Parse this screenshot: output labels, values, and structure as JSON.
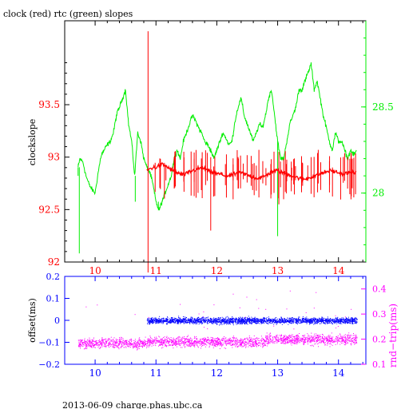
{
  "title": "clock (red) rtc (green) slopes",
  "footer": "2013-06-09  charge.phas.ubc.ca",
  "colors": {
    "red": "#ff0000",
    "green": "#00ee00",
    "blue": "#0000ff",
    "magenta": "#ff00ff",
    "black": "#000000"
  },
  "chart_data": [
    {
      "type": "line",
      "title": "clock (red) rtc (green) slopes",
      "xlabel": "",
      "ylabel": "clockslope",
      "xlim": [
        9.5,
        14.45
      ],
      "ylim": [
        92,
        94.3
      ],
      "y2lim": [
        27.6,
        29.0
      ],
      "x_ticks": [
        10,
        11,
        12,
        13,
        14
      ],
      "y_ticks": [
        92,
        92.5,
        93,
        93.5
      ],
      "y2_ticks": [
        28,
        28.5
      ],
      "x_tick_labels": [
        "10",
        "11",
        "12",
        "13",
        "14"
      ],
      "y_tick_labels": [
        "92",
        "92.5",
        "93",
        "93.5"
      ],
      "y2_tick_labels": [
        "28",
        "28.5"
      ],
      "grid": false,
      "series": [
        {
          "axis": "right",
          "color": "green",
          "x": [
            9.72,
            9.75,
            9.8,
            9.85,
            9.9,
            9.95,
            10.0,
            10.05,
            10.1,
            10.15,
            10.2,
            10.25,
            10.3,
            10.35,
            10.4,
            10.45,
            10.5,
            10.55,
            10.6,
            10.65,
            10.7,
            10.75,
            10.8,
            10.85,
            10.9,
            10.95,
            11.0,
            11.05,
            11.1,
            11.15,
            11.2,
            11.25,
            11.3,
            11.35,
            11.4,
            11.45,
            11.5,
            11.55,
            11.6,
            11.65,
            11.7,
            11.75,
            11.8,
            11.85,
            11.9,
            11.95,
            12.0,
            12.05,
            12.1,
            12.15,
            12.2,
            12.25,
            12.3,
            12.35,
            12.4,
            12.45,
            12.5,
            12.55,
            12.6,
            12.65,
            12.7,
            12.75,
            12.8,
            12.85,
            12.9,
            12.95,
            13.0,
            13.05,
            13.1,
            13.15,
            13.2,
            13.25,
            13.3,
            13.35,
            13.4,
            13.45,
            13.5,
            13.55,
            13.6,
            13.65,
            13.7,
            13.75,
            13.8,
            13.85,
            13.9,
            13.95,
            14.0,
            14.05,
            14.1,
            14.15,
            14.2,
            14.25,
            14.3
          ],
          "values": [
            28.15,
            28.2,
            28.18,
            28.1,
            28.05,
            28.02,
            28.0,
            28.12,
            28.22,
            28.25,
            28.28,
            28.3,
            28.35,
            28.45,
            28.5,
            28.55,
            28.6,
            28.4,
            28.3,
            28.1,
            28.35,
            28.3,
            28.2,
            28.15,
            28.12,
            28.05,
            27.95,
            27.9,
            27.95,
            28.0,
            28.05,
            28.1,
            28.2,
            28.25,
            28.2,
            28.3,
            28.35,
            28.4,
            28.45,
            28.42,
            28.38,
            28.35,
            28.3,
            28.28,
            28.25,
            28.2,
            28.25,
            28.3,
            28.35,
            28.32,
            28.28,
            28.3,
            28.42,
            28.5,
            28.55,
            28.45,
            28.4,
            28.35,
            28.3,
            28.35,
            28.4,
            28.38,
            28.45,
            28.55,
            28.6,
            28.45,
            28.3,
            28.2,
            28.2,
            28.3,
            28.4,
            28.45,
            28.5,
            28.6,
            28.6,
            28.65,
            28.7,
            28.75,
            28.6,
            28.65,
            28.55,
            28.45,
            28.38,
            28.3,
            28.25,
            28.35,
            28.3,
            28.3,
            28.25,
            28.2,
            28.25,
            28.22,
            28.25
          ]
        },
        {
          "axis": "left",
          "color": "red",
          "x": [
            10.85,
            10.9,
            10.95,
            11.0,
            11.05,
            11.1,
            11.15,
            11.2,
            11.25,
            11.3,
            11.35,
            11.4,
            11.45,
            11.5,
            11.55,
            11.6,
            11.65,
            11.7,
            11.75,
            11.8,
            11.85,
            11.9,
            11.95,
            12.0,
            12.05,
            12.1,
            12.15,
            12.2,
            12.25,
            12.3,
            12.35,
            12.4,
            12.45,
            12.5,
            12.55,
            12.6,
            12.65,
            12.7,
            12.75,
            12.8,
            12.85,
            12.9,
            12.95,
            13.0,
            13.05,
            13.1,
            13.15,
            13.2,
            13.25,
            13.3,
            13.35,
            13.4,
            13.45,
            13.5,
            13.55,
            13.6,
            13.65,
            13.7,
            13.75,
            13.8,
            13.85,
            13.9,
            13.95,
            14.0,
            14.05,
            14.1,
            14.15,
            14.2,
            14.25,
            14.3
          ],
          "values": [
            92.87,
            92.89,
            92.9,
            92.9,
            92.92,
            92.93,
            92.92,
            92.9,
            92.88,
            92.87,
            92.85,
            92.84,
            92.83,
            92.84,
            92.86,
            92.87,
            92.88,
            92.89,
            92.9,
            92.89,
            92.87,
            92.86,
            92.85,
            92.84,
            92.84,
            92.83,
            92.82,
            92.82,
            92.83,
            92.84,
            92.85,
            92.85,
            92.84,
            92.83,
            92.82,
            92.81,
            92.8,
            92.8,
            92.81,
            92.82,
            92.84,
            92.86,
            92.87,
            92.87,
            92.86,
            92.85,
            92.84,
            92.83,
            92.82,
            92.81,
            92.8,
            92.79,
            92.79,
            92.8,
            92.81,
            92.82,
            92.83,
            92.84,
            92.85,
            92.86,
            92.87,
            92.87,
            92.86,
            92.85,
            92.84,
            92.84,
            92.85,
            92.85,
            92.86,
            92.86
          ],
          "spikes": [
            {
              "x": 10.87,
              "low": 91.9,
              "high": 94.2
            },
            {
              "x": 11.9,
              "low": 92.3,
              "high": 93.0
            },
            {
              "x": 13.02,
              "low": 92.55,
              "high": 93.05
            },
            {
              "x": 11.3,
              "low": 92.7,
              "high": 93.0
            },
            {
              "x": 12.35,
              "low": 92.7,
              "high": 93.0
            },
            {
              "x": 13.55,
              "low": 92.65,
              "high": 93.0
            },
            {
              "x": 14.15,
              "low": 92.7,
              "high": 93.0
            }
          ]
        }
      ]
    },
    {
      "type": "scatter",
      "xlabel": "",
      "ylabel": "offset(ms)",
      "y2label": "rnd−trip(ms)",
      "xlim": [
        9.5,
        14.45
      ],
      "ylim": [
        -0.2,
        0.2
      ],
      "y2lim": [
        0.1,
        0.45
      ],
      "x_ticks": [
        10,
        11,
        12,
        13,
        14
      ],
      "y_ticks": [
        -0.2,
        -0.1,
        0,
        0.1,
        0.2
      ],
      "y2_ticks": [
        0.1,
        0.2,
        0.3,
        0.4
      ],
      "x_tick_labels": [
        "10",
        "11",
        "12",
        "13",
        "14"
      ],
      "y_tick_labels": [
        "−0.2",
        "−0.1",
        "0",
        "0.1",
        "0.2"
      ],
      "y2_tick_labels": [
        "0.1",
        "0.2",
        "0.3",
        "0.4"
      ],
      "grid": false,
      "series": [
        {
          "axis": "left",
          "color": "blue",
          "x_range": [
            10.85,
            14.3
          ],
          "center": 0.0,
          "spread": 0.035
        },
        {
          "axis": "right",
          "color": "magenta",
          "segments": [
            {
              "x_range": [
                9.72,
                10.85
              ],
              "center": 0.185,
              "spread": 0.03
            },
            {
              "x_range": [
                10.85,
                12.8
              ],
              "center": 0.19,
              "spread": 0.03
            },
            {
              "x_range": [
                12.8,
                14.3
              ],
              "center": 0.2,
              "spread": 0.03
            }
          ]
        }
      ]
    }
  ]
}
